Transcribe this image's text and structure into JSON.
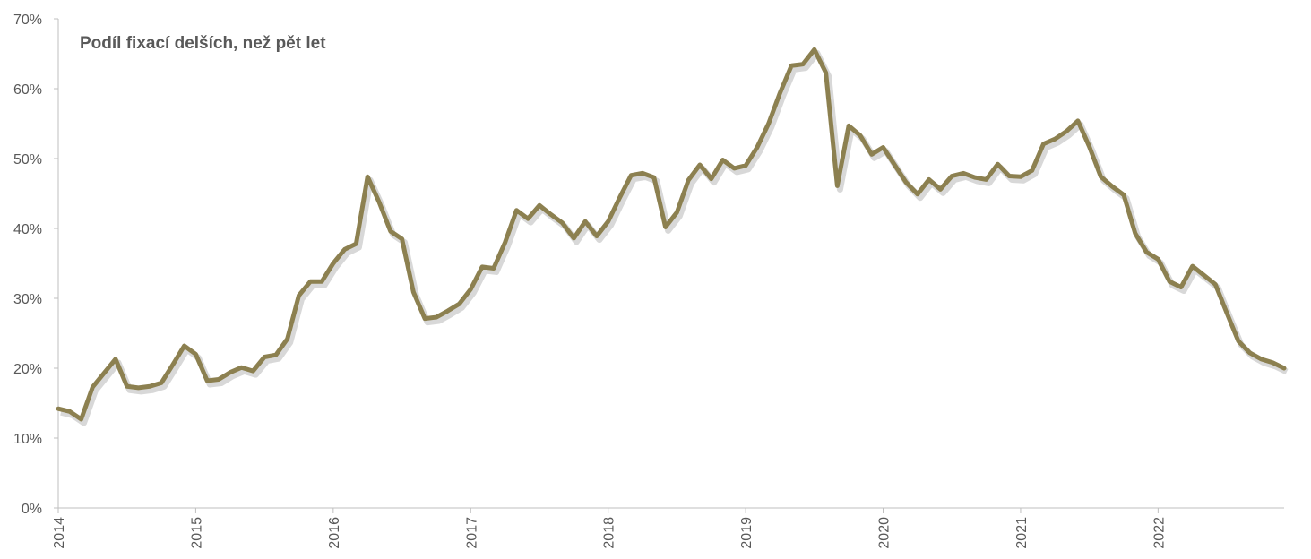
{
  "chart_data": {
    "type": "line",
    "title": "Podíl fixací delších, než pět let",
    "xlabel": "",
    "ylabel": "",
    "ylim": [
      0,
      70
    ],
    "y_tick_labels": [
      "0%",
      "10%",
      "20%",
      "30%",
      "40%",
      "50%",
      "60%",
      "70%"
    ],
    "x_tick_labels": [
      "2014",
      "2015",
      "2016",
      "2017",
      "2018",
      "2019",
      "2020",
      "2021",
      "2022"
    ],
    "x_start": "2014-01",
    "x_step": "month",
    "grid": false,
    "legend": "none",
    "line_color": "#8c8050",
    "shadow_color": "#d8d8d8",
    "series": [
      {
        "values": [
          14.2,
          13.8,
          12.7,
          17.3,
          19.3,
          21.3,
          17.4,
          17.2,
          17.4,
          17.9,
          20.5,
          23.2,
          22.0,
          18.2,
          18.4,
          19.4,
          20.1,
          19.6,
          21.6,
          21.9,
          24.2,
          30.4,
          32.4,
          32.4,
          35.0,
          37.0,
          37.8,
          47.4,
          43.8,
          39.6,
          38.5,
          30.9,
          27.1,
          27.3,
          28.2,
          29.2,
          31.3,
          34.5,
          34.3,
          38.0,
          42.6,
          41.4,
          43.3,
          42.0,
          40.8,
          38.6,
          41.0,
          38.9,
          41.0,
          44.4,
          47.6,
          47.9,
          47.3,
          40.2,
          42.3,
          46.9,
          49.1,
          47.1,
          49.8,
          48.6,
          49.0,
          51.6,
          55.0,
          59.4,
          63.3,
          63.5,
          65.6,
          62.3,
          46.1,
          54.7,
          53.3,
          50.6,
          51.6,
          49.1,
          46.6,
          44.9,
          47.0,
          45.6,
          47.5,
          47.9,
          47.3,
          47.0,
          49.2,
          47.5,
          47.4,
          48.3,
          52.1,
          52.8,
          53.9,
          55.4,
          51.7,
          47.4,
          46.0,
          44.8,
          39.3,
          36.6,
          35.6,
          32.4,
          31.6,
          34.6,
          33.3,
          32.0,
          27.9,
          23.9,
          22.2,
          21.3,
          20.8,
          20.0
        ]
      }
    ]
  }
}
